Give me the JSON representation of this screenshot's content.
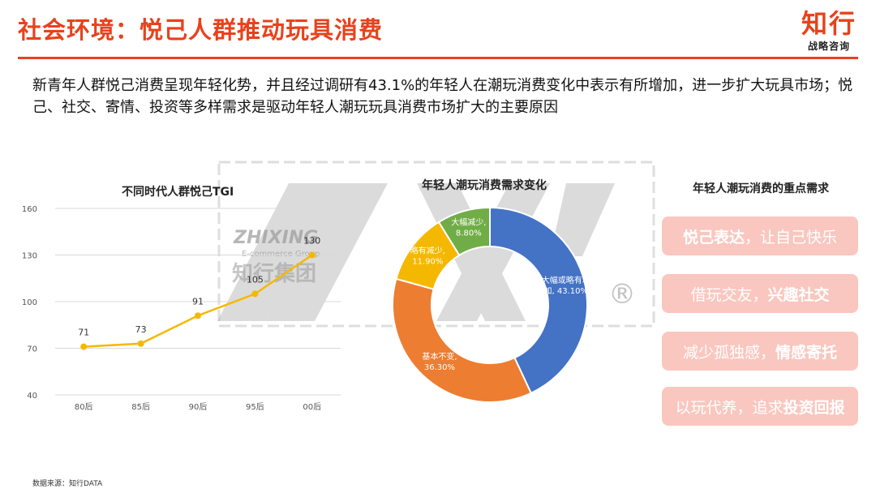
{
  "header": {
    "title": "社会环境：悦己人群推动玩具消费",
    "logo_main": "知行",
    "logo_sub": "战略咨询"
  },
  "intro": "新青年人群悦己消费呈现年轻化势，并且经过调研有43.1%的年轻人在潮玩消费变化中表示有所增加，进一步扩大玩具市场；悦己、社交、寄情、投资等多样需求是驱动年轻人潮玩玩具消费市场扩大的主要原因",
  "watermark": {
    "name_en": "ZHIXING",
    "sub_en": "E-commerce Group",
    "name_cn": "知行集团",
    "registered": "®"
  },
  "chart_data": [
    {
      "type": "line",
      "title": "不同时代人群悦己TGI",
      "categories": [
        "80后",
        "85后",
        "90后",
        "95后",
        "00后"
      ],
      "values": [
        71,
        73,
        91,
        105,
        130
      ],
      "ylim": [
        40,
        160
      ],
      "yticks": [
        40,
        70,
        100,
        130,
        160
      ],
      "xlabel": "",
      "ylabel": "",
      "grid": true,
      "color": "#f5b800"
    },
    {
      "type": "pie",
      "subtype": "donut",
      "title": "年轻人潮玩消费需求变化",
      "slices": [
        {
          "label": "大幅或略有增加",
          "value": 43.1,
          "display": "大幅或略有增加, 43.10%",
          "line1": "大幅或略有增",
          "line2": "加, 43.10%",
          "color": "#4472c4"
        },
        {
          "label": "基本不变",
          "value": 36.3,
          "display": "基本不变, 36.30%",
          "line1": "基本不变,",
          "line2": "36.30%",
          "color": "#ed7d31"
        },
        {
          "label": "略有减少",
          "value": 11.9,
          "display": "略有减少, 11.90%",
          "line1": "略有减少,",
          "line2": "11.90%",
          "color": "#f5b800"
        },
        {
          "label": "大幅减少",
          "value": 8.8,
          "display": "大幅减少, 8.80%",
          "line1": "大幅减少,",
          "line2": "8.80%",
          "color": "#70ad47"
        }
      ]
    }
  ],
  "needs": {
    "title": "年轻人潮玩消费的重点需求",
    "items": [
      {
        "bold": "悦己表达",
        "normal": "，让自己快乐"
      },
      {
        "normal": "借玩交友，",
        "bold": "兴趣社交"
      },
      {
        "normal": "减少孤独感，",
        "bold": "情感寄托"
      },
      {
        "normal": "以玩代养，追求",
        "bold": "投资回报"
      }
    ]
  },
  "source": "数据来源：知行DATA"
}
